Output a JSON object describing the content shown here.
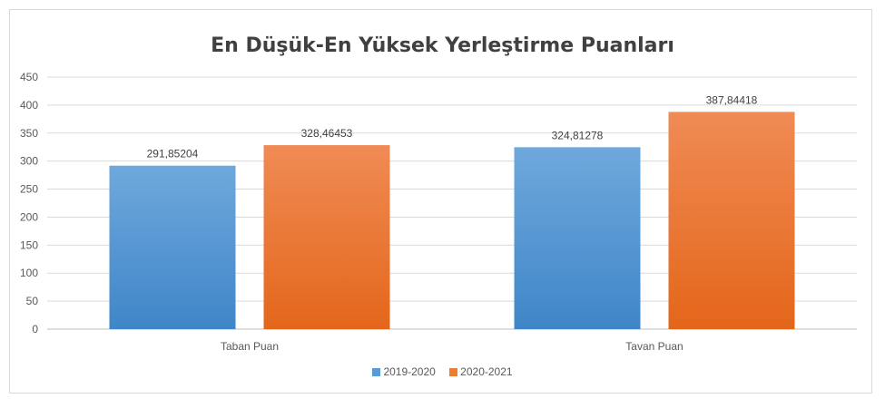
{
  "chart_data": {
    "type": "bar",
    "title": "En Düşük-En Yüksek Yerleştirme Puanları",
    "categories": [
      "Taban Puan",
      "Tavan Puan"
    ],
    "series": [
      {
        "name": "2019-2020",
        "values": [
          291.85204,
          324.81278
        ],
        "labels": [
          "291,85204",
          "324,81278"
        ],
        "color": "#5b9bd5"
      },
      {
        "name": "2020-2021",
        "values": [
          328.46453,
          387.84418
        ],
        "labels": [
          "328,46453",
          "387,84418"
        ],
        "color": "#ed7d31"
      }
    ],
    "ylim": [
      0,
      450
    ],
    "yticks": [
      0,
      50,
      100,
      150,
      200,
      250,
      300,
      350,
      400,
      450
    ],
    "grid": true,
    "legend_position": "bottom",
    "xlabel": "",
    "ylabel": ""
  }
}
